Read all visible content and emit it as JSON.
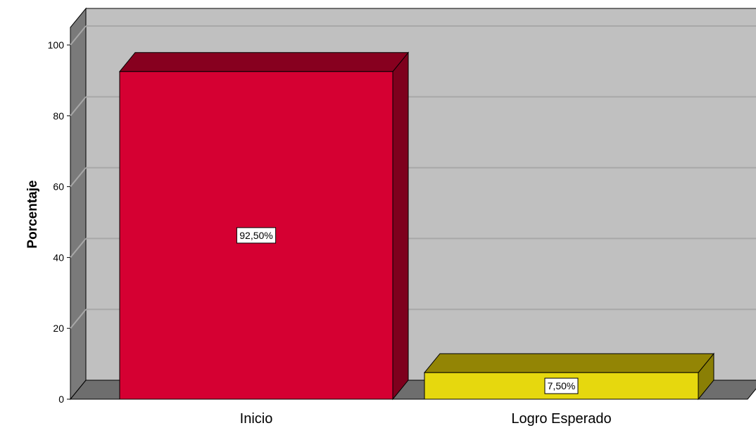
{
  "chart_data": {
    "type": "bar",
    "style": "3d",
    "categories": [
      "Inicio",
      "Logro Esperado"
    ],
    "values": [
      92.5,
      7.5
    ],
    "data_labels": [
      "92,50%",
      "7,50%"
    ],
    "ylabel": "Porcentaje",
    "xlabel": "",
    "ylim": [
      0,
      100
    ],
    "yticks": [
      0,
      20,
      40,
      60,
      80,
      100
    ],
    "ytick_labels": [
      "0",
      "20",
      "40",
      "60",
      "80",
      "100"
    ],
    "grid": true,
    "colors": {
      "bars_front": [
        "#d50032",
        "#e6d80e"
      ],
      "bars_top": [
        "#87001f",
        "#938505"
      ],
      "bars_side": [
        "#7e001d",
        "#8a7f05"
      ],
      "plot_back": "#c0c0c0",
      "floor": "#6e6e6e",
      "left_wall": "#7a7a7a",
      "gridline": "#a8a8a8"
    }
  }
}
